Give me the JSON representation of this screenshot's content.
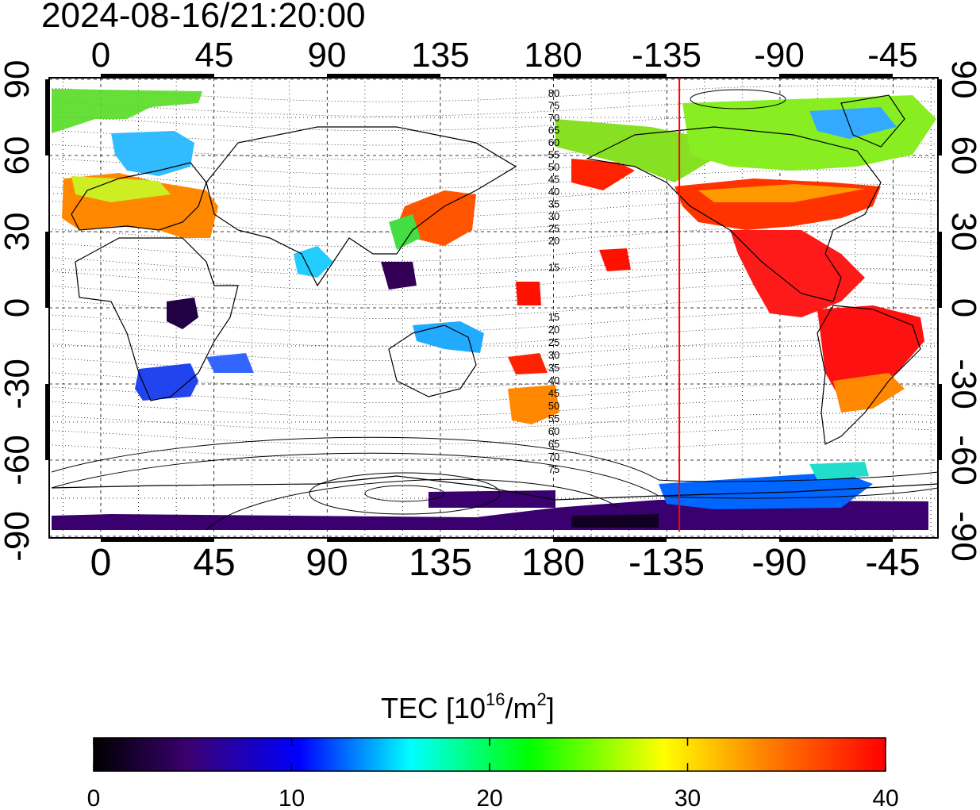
{
  "timestamp": "2024-08-16/21:20:00",
  "map": {
    "x_top_ticks": [
      "0",
      "45",
      "90",
      "135",
      "180",
      "-135",
      "-90",
      "-45"
    ],
    "x_bottom_ticks": [
      "0",
      "45",
      "90",
      "135",
      "180",
      "-135",
      "-90",
      "-45"
    ],
    "y_left_ticks": [
      "90",
      "60",
      "30",
      "0",
      "-30",
      "-60",
      "-90"
    ],
    "y_right_ticks": [
      "90",
      "60",
      "30",
      "0",
      "-30",
      "-60",
      "-90"
    ],
    "contour_labels_north": [
      "80",
      "75",
      "70",
      "65",
      "60",
      "55",
      "50",
      "45",
      "40",
      "35",
      "30",
      "25",
      "20",
      "15"
    ],
    "contour_labels_south": [
      "15",
      "20",
      "25",
      "30",
      "35",
      "40",
      "45",
      "50",
      "55",
      "60",
      "65",
      "70",
      "75"
    ],
    "marker_longitude": -130,
    "marker_color": "#ff0000"
  },
  "colorbar": {
    "title_prefix": "TEC  [10",
    "title_exp1": "16",
    "title_mid": "/m",
    "title_exp2": "2",
    "title_suffix": "]",
    "ticks": [
      "0",
      "10",
      "20",
      "30",
      "40"
    ],
    "min": 0,
    "max": 40,
    "colors": [
      "#000000",
      "#3a0070",
      "#0000ff",
      "#00ffff",
      "#00ff00",
      "#ffff00",
      "#ff7f00",
      "#ff0000"
    ]
  }
}
